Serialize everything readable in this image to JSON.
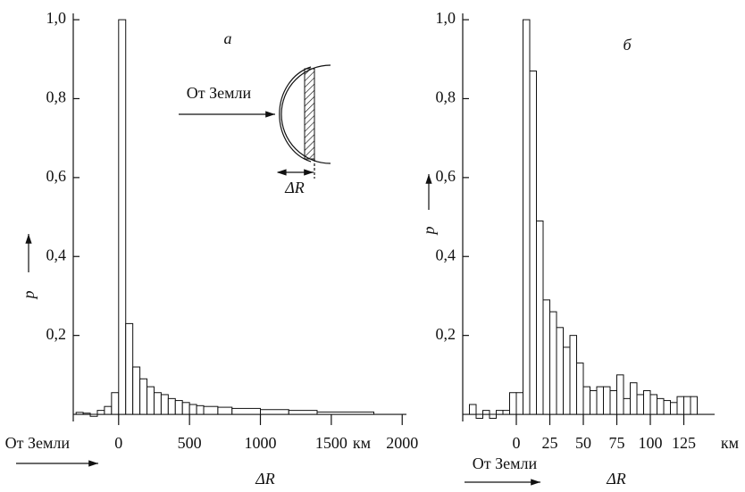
{
  "chart_data": [
    {
      "type": "histogram",
      "panel_label": "а",
      "ylabel": "p",
      "xlabel": "ΔR",
      "x_unit": "км",
      "direction_label": "От Земли",
      "inset": {
        "arrow_label": "От Земли",
        "width_label": "ΔR"
      },
      "bins": [
        -300,
        -250,
        -200,
        -150,
        -100,
        -50,
        0,
        50,
        100,
        150,
        200,
        250,
        300,
        350,
        400,
        450,
        500,
        550,
        600,
        700,
        800,
        1000,
        1200,
        1400,
        1800
      ],
      "values": [
        0.005,
        0.003,
        -0.005,
        0.01,
        0.02,
        0.055,
        1.0,
        0.23,
        0.12,
        0.09,
        0.07,
        0.055,
        0.05,
        0.04,
        0.035,
        0.03,
        0.025,
        0.022,
        0.02,
        0.018,
        0.015,
        0.012,
        0.01,
        0.006
      ],
      "color": "#ffffff",
      "xlim": [
        -320,
        2030
      ],
      "xticks": [
        0,
        500,
        1000,
        1500,
        2000
      ],
      "ylim": [
        -0.018,
        1.016
      ],
      "yticks": [
        {
          "value": 0.2,
          "label": "0,2"
        },
        {
          "value": 0.4,
          "label": "0,4"
        },
        {
          "value": 0.6,
          "label": "0,6"
        },
        {
          "value": 0.8,
          "label": "0,8"
        },
        {
          "value": 1.0,
          "label": "1,0"
        }
      ]
    },
    {
      "type": "histogram",
      "panel_label": "б",
      "ylabel": "p",
      "xlabel": "ΔR",
      "x_unit": "км",
      "direction_label": "От Земли",
      "bins": [
        -35,
        -30,
        -25,
        -20,
        -15,
        -10,
        -5,
        0,
        5,
        10,
        15,
        20,
        25,
        30,
        35,
        40,
        45,
        50,
        55,
        60,
        65,
        70,
        75,
        80,
        85,
        90,
        95,
        100,
        105,
        110,
        115,
        120,
        125,
        130,
        135
      ],
      "values": [
        0.025,
        -0.01,
        0.01,
        -0.01,
        0.01,
        0.01,
        0.055,
        0.055,
        1.0,
        0.87,
        0.49,
        0.29,
        0.26,
        0.22,
        0.17,
        0.2,
        0.13,
        0.07,
        0.06,
        0.07,
        0.07,
        0.06,
        0.1,
        0.04,
        0.08,
        0.05,
        0.06,
        0.05,
        0.04,
        0.035,
        0.03,
        0.045,
        0.045,
        0.045
      ],
      "color": "#ffffff",
      "xlim": [
        -40,
        148
      ],
      "xticks": [
        0,
        25,
        50,
        75,
        100,
        125
      ],
      "ylim": [
        -0.018,
        1.016
      ],
      "yticks": [
        {
          "value": 0.2,
          "label": "0,2"
        },
        {
          "value": 0.4,
          "label": "0,4"
        },
        {
          "value": 0.6,
          "label": "0,6"
        },
        {
          "value": 0.8,
          "label": "0,8"
        },
        {
          "value": 1.0,
          "label": "1,0"
        }
      ]
    }
  ]
}
